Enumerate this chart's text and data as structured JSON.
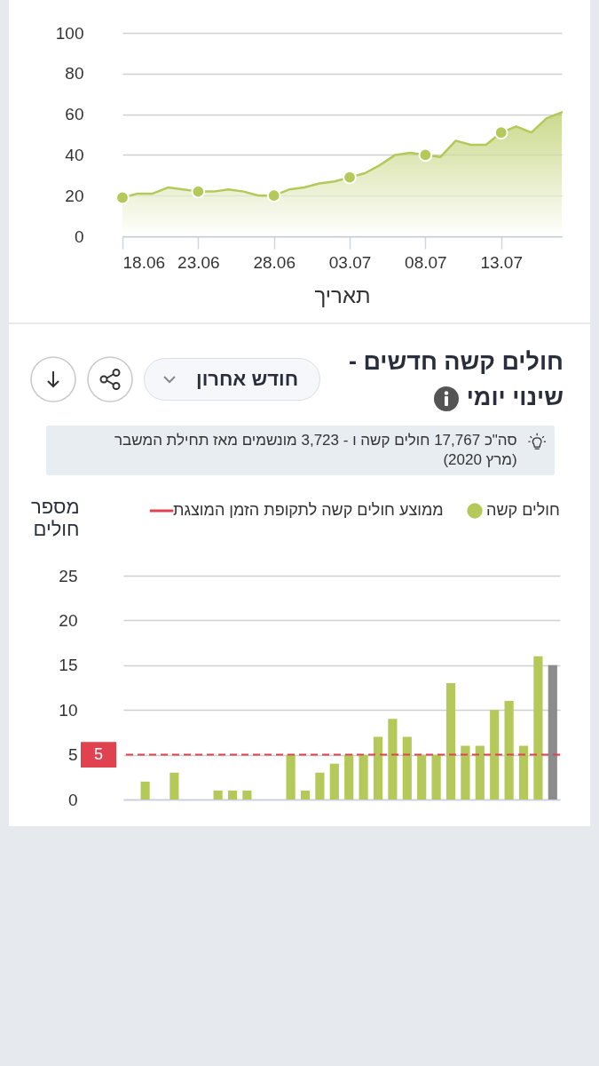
{
  "chart_data": [
    {
      "type": "area",
      "xlabel": "תאריך",
      "x": [
        "--06-18",
        "--06-19",
        "--06-20",
        "--06-21",
        "--06-22",
        "--06-23",
        "--06-24",
        "--06-25",
        "--06-26",
        "--06-27",
        "--06-28",
        "--06-29",
        "--06-30",
        "--07-01",
        "--07-02",
        "--07-03",
        "--07-04",
        "--07-05",
        "--07-06",
        "--07-07",
        "--07-08",
        "--07-09",
        "--07-10",
        "--07-11",
        "--07-12",
        "--07-13",
        "--07-14",
        "--07-15",
        "--07-16",
        "--07-17"
      ],
      "series": [
        {
          "type": "area",
          "color": "#b5c95a",
          "values": [
            19,
            21,
            21,
            24,
            23,
            22,
            22,
            23,
            22,
            20,
            20,
            23,
            24,
            26,
            27,
            29,
            31,
            35,
            40,
            41,
            40,
            39,
            47,
            45,
            45,
            51,
            54,
            51,
            58,
            61
          ]
        },
        {
          "type": "scatter",
          "marker": "circle",
          "color": "#b5c95a",
          "x": [
            "--06-18",
            "--06-23",
            "--06-28",
            "--07-03",
            "--07-08",
            "--07-13"
          ],
          "values": [
            19,
            22,
            20,
            29,
            40,
            51
          ]
        }
      ],
      "xlim": [
        "--06-18",
        "--07-17"
      ],
      "xticks": [
        {
          "value": "--06-18",
          "label": "18.06"
        },
        {
          "value": "--06-23",
          "label": "23.06"
        },
        {
          "value": "--06-28",
          "label": "28.06"
        },
        {
          "value": "--07-03",
          "label": "03.07"
        },
        {
          "value": "--07-08",
          "label": "08.07"
        },
        {
          "value": "--07-13",
          "label": "13.07"
        }
      ],
      "ylim": [
        0,
        100
      ],
      "yticks": [
        0,
        20,
        40,
        60,
        80,
        100
      ],
      "grid": "y"
    },
    {
      "type": "bar",
      "title": "חולים קשה חדשים - שינוי יומי",
      "ylabel": "מספר חולים",
      "annotations": [
        "חודש אחרון",
        "סה\"כ 17,767 חולים קשה ו - 3,723 מונשמים מאז תחילת המשבר (מרץ 2020)",
        "5"
      ],
      "categories": [
        null,
        null,
        null,
        null,
        null,
        null,
        null,
        null,
        null,
        null,
        null,
        null,
        null,
        null,
        null,
        null,
        null,
        null,
        null,
        null,
        null,
        null,
        null,
        null,
        null,
        null,
        null,
        null,
        null,
        null
      ],
      "series": [
        {
          "name": "חולים קשה",
          "color": "#b5c95a",
          "colors": [
            "#b5c95a",
            "#b5c95a",
            "#b5c95a",
            "#b5c95a",
            "#b5c95a",
            "#b5c95a",
            "#b5c95a",
            "#b5c95a",
            "#b5c95a",
            "#b5c95a",
            "#b5c95a",
            "#b5c95a",
            "#b5c95a",
            "#b5c95a",
            "#b5c95a",
            "#b5c95a",
            "#b5c95a",
            "#b5c95a",
            "#b5c95a",
            "#b5c95a",
            "#b5c95a",
            "#b5c95a",
            "#b5c95a",
            "#b5c95a",
            "#b5c95a",
            "#b5c95a",
            "#b5c95a",
            "#b5c95a",
            "#b5c95a",
            "#8c8c8c"
          ],
          "values": [
            0,
            2,
            0,
            3,
            0,
            0,
            1,
            1,
            1,
            0,
            0,
            5,
            1,
            3,
            4,
            5,
            5,
            7,
            9,
            7,
            5,
            5,
            13,
            6,
            6,
            10,
            11,
            6,
            16,
            15
          ]
        }
      ],
      "ylim": [
        0,
        25
      ],
      "yticks": [
        0,
        5,
        10,
        15,
        20,
        25
      ],
      "grid": "y",
      "legend": "top right",
      "tick_labels": "y",
      "ref_lines": [
        {
          "axis": "y",
          "value": 5,
          "label": "ממוצע חולים קשה לתקופת הזמן המוצגת",
          "color": "#e0434f",
          "line_style": "dashed"
        }
      ]
    }
  ]
}
